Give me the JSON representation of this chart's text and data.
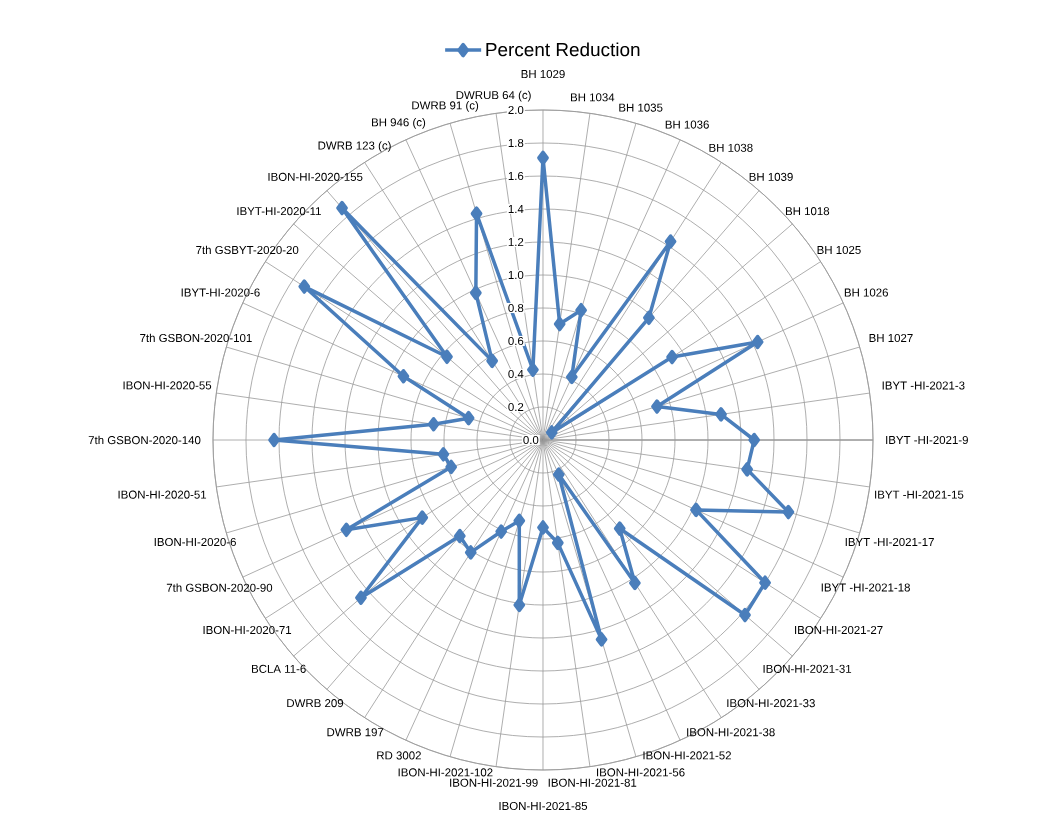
{
  "chart_data": {
    "type": "radar",
    "categories": [
      "BH 1029",
      "BH 1034",
      "BH 1035",
      "BH 1036",
      "BH 1038",
      "BH 1039",
      "BH 1018",
      "BH 1025",
      "BH 1026",
      "BH 1027",
      "IBYT -HI-2021-3",
      "IBYT -HI-2021-9",
      "IBYT -HI-2021-15",
      "IBYT -HI-2021-17",
      "IBYT -HI-2021-18",
      "IBON-HI-2021-27",
      "IBON-HI-2021-31",
      "IBON-HI-2021-33",
      "IBON-HI-2021-38",
      "IBON-HI-2021-52",
      "IBON-HI-2021-56",
      "IBON-HI-2021-81",
      "IBON-HI-2021-85",
      "IBON-HI-2021-99",
      "IBON-HI-2021-102",
      "RD 3002",
      "DWRB 197",
      "DWRB 209",
      "BCLA 11-6",
      "IBON-HI-2020-71",
      "7th GSBON-2020-90",
      "IBON-HI-2020-6",
      "IBON-HI-2020-51",
      "7th GSBON-2020-140",
      "IBON-HI-2020-55",
      "7th GSBON-2020-101",
      "IBYT-HI-2020-6",
      "7th GSBYT-2020-20",
      "IBYT-HI-2020-11",
      "IBON-HI-2020-155",
      "DWRB 123 (c)",
      "BH 946  (c)",
      "DWRB 91  (c)",
      "DWRUB 64 (c)"
    ],
    "series": [
      {
        "name": "Percent Reduction",
        "color": "#4a7ebb",
        "values": [
          1.71,
          0.71,
          0.82,
          0.42,
          1.43,
          0.98,
          0.07,
          0.93,
          1.43,
          0.72,
          1.09,
          1.28,
          1.25,
          1.55,
          1.02,
          1.6,
          1.62,
          0.71,
          1.03,
          0.23,
          1.26,
          0.63,
          0.53,
          1.01,
          0.51,
          0.61,
          0.81,
          0.77,
          1.46,
          0.87,
          1.31,
          0.58,
          0.61,
          1.63,
          0.67,
          0.47,
          0.93,
          1.72,
          0.77,
          1.86,
          0.57,
          0.98,
          1.43,
          0.43
        ]
      }
    ],
    "ylim": [
      0,
      2
    ],
    "yticks": [
      {
        "value": 0,
        "label": "0.0"
      },
      0.2,
      0.4,
      0.6,
      0.8,
      {
        "value": 1,
        "label": "1.0"
      },
      1.2,
      1.4,
      1.6,
      1.8,
      {
        "value": 2,
        "label": "2.0"
      }
    ],
    "grid": true,
    "legend": "top",
    "marker": "diamond",
    "line_style": "solid"
  }
}
